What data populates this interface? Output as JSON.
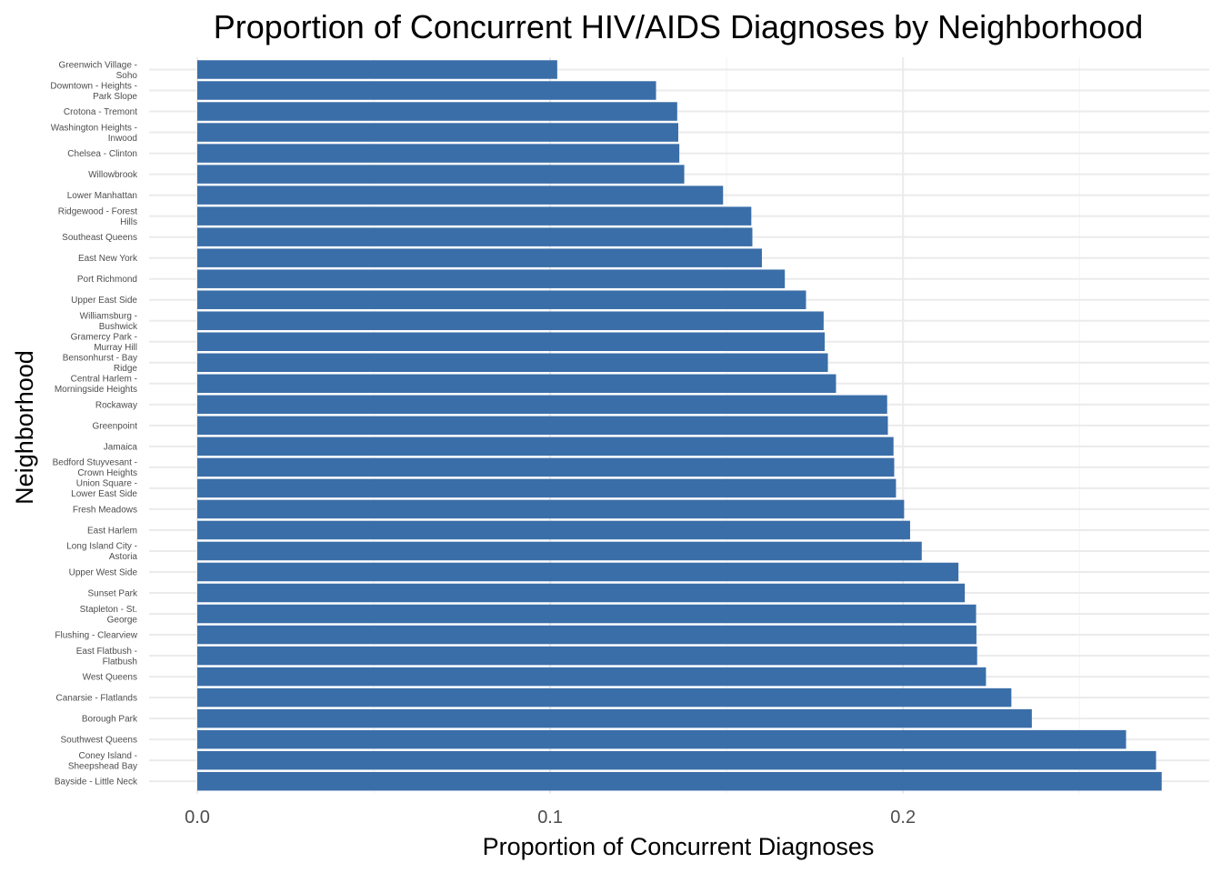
{
  "chart_data": {
    "type": "bar",
    "orientation": "horizontal",
    "title": "Proportion of Concurrent HIV/AIDS Diagnoses by Neighborhood",
    "xlabel": "Proportion of Concurrent Diagnoses",
    "ylabel": "Neighborhood",
    "xlim": [
      0,
      0.28
    ],
    "xticks": [
      0.0,
      0.1,
      0.2
    ],
    "xtick_labels": [
      "0.0",
      "0.1",
      "0.2"
    ],
    "grid": true,
    "bar_color": "#3A6EA8",
    "categories": [
      "Greenwich Village - Soho",
      "Downtown - Heights - Park Slope",
      "Crotona - Tremont",
      "Washington Heights - Inwood",
      "Chelsea - Clinton",
      "Willowbrook",
      "Lower Manhattan",
      "Ridgewood - Forest Hills",
      "Southeast Queens",
      "East New York",
      "Port Richmond",
      "Upper East Side",
      "Williamsburg - Bushwick",
      "Gramercy Park - Murray Hill",
      "Bensonhurst - Bay Ridge",
      "Central Harlem - Morningside Heights",
      "Rockaway",
      "Greenpoint",
      "Jamaica",
      "Bedford Stuyvesant - Crown Heights",
      "Union Square - Lower East Side",
      "Fresh Meadows",
      "East Harlem",
      "Long Island City - Astoria",
      "Upper West Side",
      "Sunset Park",
      "Stapleton - St. George",
      "Flushing - Clearview",
      "East Flatbush - Flatbush",
      "West Queens",
      "Canarsie - Flatlands",
      "Borough Park",
      "Southwest Queens",
      "Coney Island - Sheepshead Bay",
      "Bayside - Little Neck"
    ],
    "category_labels": [
      [
        "Greenwich Village -",
        "Soho"
      ],
      [
        "Downtown - Heights -",
        "Park Slope"
      ],
      [
        "Crotona - Tremont"
      ],
      [
        "Washington Heights -",
        "Inwood"
      ],
      [
        "Chelsea - Clinton"
      ],
      [
        "Willowbrook"
      ],
      [
        "Lower Manhattan"
      ],
      [
        "Ridgewood - Forest",
        "Hills"
      ],
      [
        "Southeast Queens"
      ],
      [
        "East New York"
      ],
      [
        "Port Richmond"
      ],
      [
        "Upper East Side"
      ],
      [
        "Williamsburg -",
        "Bushwick"
      ],
      [
        "Gramercy Park -",
        "Murray Hill"
      ],
      [
        "Bensonhurst - Bay",
        "Ridge"
      ],
      [
        "Central Harlem -",
        "Morningside Heights"
      ],
      [
        "Rockaway"
      ],
      [
        "Greenpoint"
      ],
      [
        "Jamaica"
      ],
      [
        "Bedford Stuyvesant -",
        "Crown Heights"
      ],
      [
        "Union Square -",
        "Lower East Side"
      ],
      [
        "Fresh Meadows"
      ],
      [
        "East Harlem"
      ],
      [
        "Long Island City -",
        "Astoria"
      ],
      [
        "Upper West Side"
      ],
      [
        "Sunset Park"
      ],
      [
        "Stapleton - St.",
        "George"
      ],
      [
        "Flushing - Clearview"
      ],
      [
        "East Flatbush -",
        "Flatbush"
      ],
      [
        "West Queens"
      ],
      [
        "Canarsie - Flatlands"
      ],
      [
        "Borough Park"
      ],
      [
        "Southwest Queens"
      ],
      [
        "Coney Island -",
        "Sheepshead Bay"
      ],
      [
        "Bayside - Little Neck"
      ]
    ],
    "values": [
      0.102,
      0.13,
      0.136,
      0.1363,
      0.1366,
      0.138,
      0.149,
      0.157,
      0.1573,
      0.16,
      0.1665,
      0.1725,
      0.1775,
      0.1778,
      0.1787,
      0.181,
      0.1955,
      0.1957,
      0.1973,
      0.1975,
      0.198,
      0.2003,
      0.202,
      0.2053,
      0.2157,
      0.2175,
      0.2207,
      0.2208,
      0.221,
      0.2235,
      0.2307,
      0.2365,
      0.2632,
      0.2717,
      0.2733
    ]
  }
}
